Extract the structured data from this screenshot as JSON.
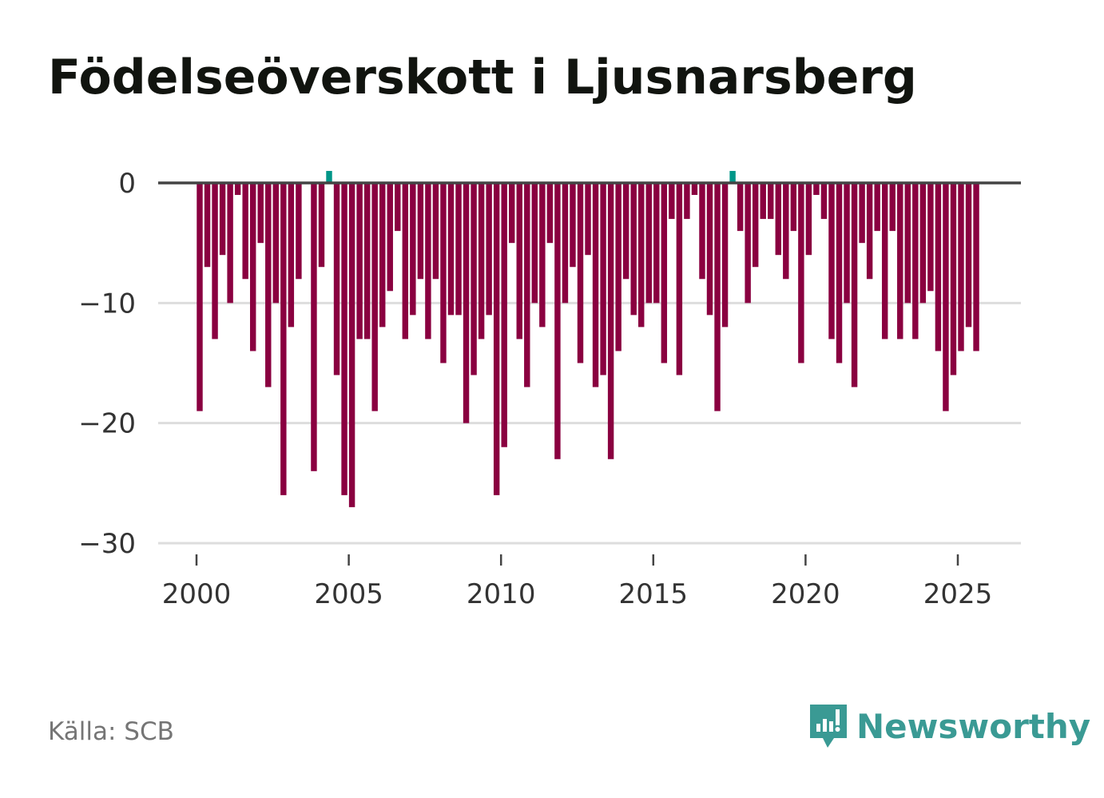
{
  "title": "Födelseöverskott i Ljusnarsberg",
  "source": "Källa: SCB",
  "brand": "Newsworthy",
  "colors": {
    "negative": "#8a0040",
    "positive": "#009688",
    "grid": "#dddddd",
    "zero_line": "#444444",
    "brand": "#3a9a94"
  },
  "chart_data": {
    "type": "bar",
    "title": "Födelseöverskott i Ljusnarsberg",
    "xlabel": "",
    "ylabel": "",
    "frequency": "quarterly",
    "start": 2000.0,
    "step": 0.25,
    "ylim": [
      -30,
      0
    ],
    "yticks": [
      0,
      -10,
      -20,
      -30
    ],
    "ytick_labels": [
      "0",
      "−10",
      "−20",
      "−30"
    ],
    "xticks": [
      2000,
      2005,
      2010,
      2015,
      2020,
      2025
    ],
    "xtick_labels": [
      "2000",
      "2005",
      "2010",
      "2015",
      "2020",
      "2025"
    ],
    "values": [
      -19,
      -7,
      -13,
      -6,
      -10,
      -1,
      -8,
      -14,
      -5,
      -17,
      -10,
      -26,
      -12,
      -8,
      0,
      -24,
      -7,
      1,
      -16,
      -26,
      -27,
      -13,
      -13,
      -19,
      -12,
      -9,
      -4,
      -13,
      -11,
      -8,
      -13,
      -8,
      -15,
      -11,
      -11,
      -20,
      -16,
      -13,
      -11,
      -26,
      -22,
      -5,
      -13,
      -17,
      -10,
      -12,
      -5,
      -23,
      -10,
      -7,
      -15,
      -6,
      -17,
      -16,
      -23,
      -14,
      -8,
      -11,
      -12,
      -10,
      -10,
      -15,
      -3,
      -16,
      -3,
      -1,
      -8,
      -11,
      -19,
      -12,
      1,
      -4,
      -10,
      -7,
      -3,
      -3,
      -6,
      -8,
      -4,
      -15,
      -6,
      -1,
      -3,
      -13,
      -15,
      -10,
      -17,
      -5,
      -8,
      -4,
      -13,
      -4,
      -13,
      -10,
      -13,
      -10,
      -9,
      -14,
      -19,
      -16,
      -14,
      -12,
      -14
    ]
  }
}
